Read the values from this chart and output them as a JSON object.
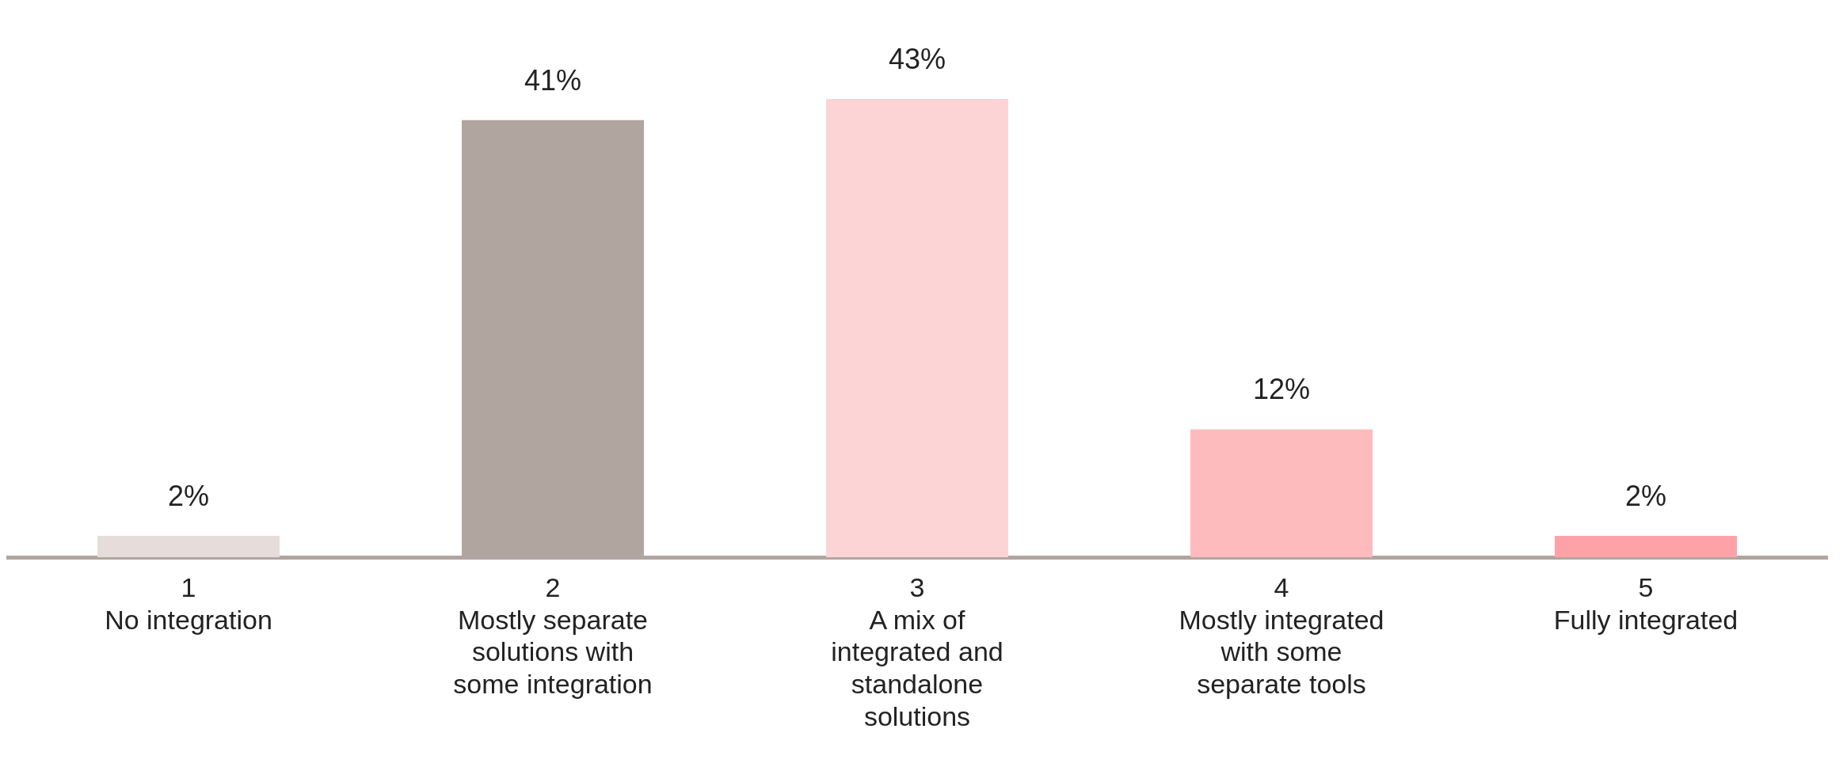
{
  "chart_data": {
    "type": "bar",
    "categories": [
      "1\nNo integration",
      "2\nMostly separate solutions with some integration",
      "3\nA mix of integrated and standalone solutions",
      "4\nMostly integrated with some separate tools",
      "5\nFully integrated"
    ],
    "values": [
      2,
      41,
      43,
      12,
      2
    ],
    "colors": [
      "#e6dcd9",
      "#b1a5a0",
      "#fdd4d6",
      "#fdbbbe",
      "#fda3a8"
    ],
    "value_labels": [
      "2%",
      "41%",
      "43%",
      "12%",
      "2%"
    ],
    "grid": false,
    "legend": false
  }
}
